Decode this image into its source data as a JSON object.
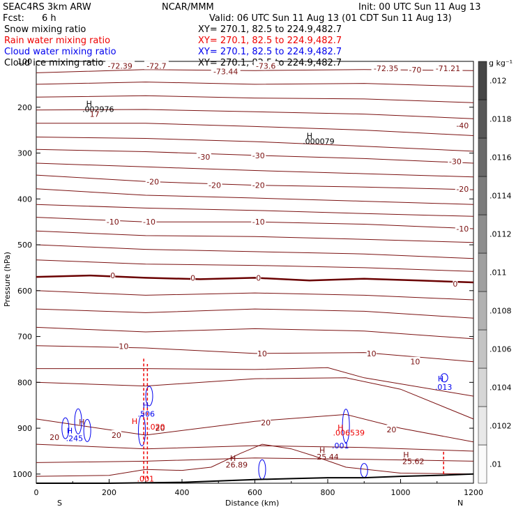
{
  "header": {
    "model": "SEAC4RS  3km ARW",
    "org": "NCAR/MMM",
    "init": "Init: 00 UTC Sun 11 Aug 13",
    "fcst_label": "Fcst:",
    "fcst_value": "6 h",
    "valid": "Valid: 06 UTC Sun 11 Aug 13 (01 CDT Sun 11 Aug 13)"
  },
  "fields": [
    {
      "name": "Snow mixing ratio",
      "xy": "XY= 270.1, 82.5 to 224.9,482.7",
      "color": "#000000"
    },
    {
      "name": "Rain water mixing ratio",
      "xy": "XY= 270.1, 82.5 to 224.9,482.7",
      "color": "#ee0000"
    },
    {
      "name": "Cloud water mixing ratio",
      "xy": "XY= 270.1, 82.5 to 224.9,482.7",
      "color": "#0000ee"
    },
    {
      "name": "Cloud ice mixing ratio",
      "xy": "XY= 270.1, 82.5 to 224.9,482.7",
      "color": "#000000"
    }
  ],
  "colors": {
    "temperature": "#7a1010",
    "zero_isotherm": "#6a0000",
    "rain": "#ee0000",
    "cloud": "#0000ee",
    "terrain": "#000000"
  },
  "chart_data": {
    "type": "cross-section contour",
    "xlabel": "Distance (km)",
    "ylabel": "Pressure (hPa)",
    "xlim": [
      0,
      1200
    ],
    "ylim": [
      1020,
      100
    ],
    "x_ticks": [
      "0",
      "200",
      "400",
      "600",
      "800",
      "1000",
      "1200"
    ],
    "y_ticks": [
      "100",
      "200",
      "300",
      "400",
      "500",
      "600",
      "700",
      "800",
      "900",
      "1000"
    ],
    "end_labels": {
      "left": "S",
      "right": "N"
    },
    "colorbar": {
      "unit": "g kg⁻¹",
      "labels": [
        ".01",
        ".0102",
        ".0104",
        ".0106",
        ".0108",
        ".011",
        ".0112",
        ".0114",
        ".0116",
        ".0118",
        ".012"
      ]
    },
    "temperature_labels": [
      {
        "text": "-72.39",
        "x": 230,
        "p": 110
      },
      {
        "text": "-72.7",
        "x": 330,
        "p": 110
      },
      {
        "text": "-73.44",
        "x": 520,
        "p": 122
      },
      {
        "text": "-73.6",
        "x": 630,
        "p": 110
      },
      {
        "text": "-72.35",
        "x": 960,
        "p": 115
      },
      {
        "text": "-70",
        "x": 1040,
        "p": 118
      },
      {
        "text": "-71.21",
        "x": 1130,
        "p": 115
      },
      {
        "text": "-40",
        "x": 1170,
        "p": 240
      },
      {
        "text": "-30",
        "x": 460,
        "p": 308
      },
      {
        "text": "-30",
        "x": 610,
        "p": 305
      },
      {
        "text": "-30",
        "x": 1150,
        "p": 318
      },
      {
        "text": "-20",
        "x": 320,
        "p": 362
      },
      {
        "text": "-20",
        "x": 490,
        "p": 370
      },
      {
        "text": "-20",
        "x": 610,
        "p": 370
      },
      {
        "text": "-20",
        "x": 1170,
        "p": 378
      },
      {
        "text": "-10",
        "x": 210,
        "p": 450
      },
      {
        "text": "-10",
        "x": 310,
        "p": 450
      },
      {
        "text": "-10",
        "x": 610,
        "p": 450
      },
      {
        "text": "-10",
        "x": 1170,
        "p": 465
      },
      {
        "text": "0",
        "x": 210,
        "p": 567
      },
      {
        "text": "0",
        "x": 430,
        "p": 572
      },
      {
        "text": "0",
        "x": 610,
        "p": 572
      },
      {
        "text": "0",
        "x": 1150,
        "p": 585
      },
      {
        "text": "10",
        "x": 240,
        "p": 721
      },
      {
        "text": "10",
        "x": 620,
        "p": 737
      },
      {
        "text": "10",
        "x": 920,
        "p": 737
      },
      {
        "text": "10",
        "x": 1040,
        "p": 755
      },
      {
        "text": "20",
        "x": 50,
        "p": 920
      },
      {
        "text": "20",
        "x": 220,
        "p": 915
      },
      {
        "text": "20",
        "x": 340,
        "p": 900
      },
      {
        "text": "20",
        "x": 630,
        "p": 888
      },
      {
        "text": "20",
        "x": 975,
        "p": 903
      }
    ],
    "extrema": [
      {
        "text": "H",
        "x": 145,
        "p": 192,
        "color": "#000000"
      },
      {
        "text": ".002976",
        "x": 170,
        "p": 204,
        "color": "#000000"
      },
      {
        "text": "17",
        "x": 160,
        "p": 215,
        "color": "#7a1010"
      },
      {
        "text": "H",
        "x": 750,
        "p": 262,
        "color": "#000000"
      },
      {
        "text": ".000079",
        "x": 775,
        "p": 274,
        "color": "#000000"
      },
      {
        "text": "H",
        "x": 1110,
        "p": 792,
        "color": "#0000ee"
      },
      {
        "text": ".013",
        "x": 1118,
        "p": 810,
        "color": "#0000ee"
      },
      {
        "text": "H",
        "x": 300,
        "p": 850,
        "color": "#0000ee"
      },
      {
        "text": ".506",
        "x": 302,
        "p": 869,
        "color": "#0000ee"
      },
      {
        "text": "H",
        "x": 125,
        "p": 886,
        "color": "#7a1010"
      },
      {
        "text": "H",
        "x": 92,
        "p": 905,
        "color": "#0000ee"
      },
      {
        "text": ".245",
        "x": 105,
        "p": 922,
        "color": "#0000ee"
      },
      {
        "text": "H",
        "x": 270,
        "p": 885,
        "color": "#ee0000"
      },
      {
        "text": ".020",
        "x": 330,
        "p": 897,
        "color": "#ee0000"
      },
      {
        "text": "H",
        "x": 835,
        "p": 898,
        "color": "#ee0000"
      },
      {
        "text": ".006539",
        "x": 858,
        "p": 910,
        "color": "#ee0000"
      },
      {
        "text": ".001",
        "x": 835,
        "p": 938,
        "color": "#0000ee"
      },
      {
        "text": "H",
        "x": 785,
        "p": 948,
        "color": "#7a1010"
      },
      {
        "text": "25.44",
        "x": 800,
        "p": 962,
        "color": "#7a1010"
      },
      {
        "text": "H",
        "x": 540,
        "p": 965,
        "color": "#7a1010"
      },
      {
        "text": "26.89",
        "x": 550,
        "p": 980,
        "color": "#7a1010"
      },
      {
        "text": "H",
        "x": 1015,
        "p": 958,
        "color": "#7a1010"
      },
      {
        "text": "25.62",
        "x": 1035,
        "p": 972,
        "color": "#7a1010"
      },
      {
        "text": ".001",
        "x": 300,
        "p": 1010,
        "color": "#ee0000"
      }
    ]
  }
}
